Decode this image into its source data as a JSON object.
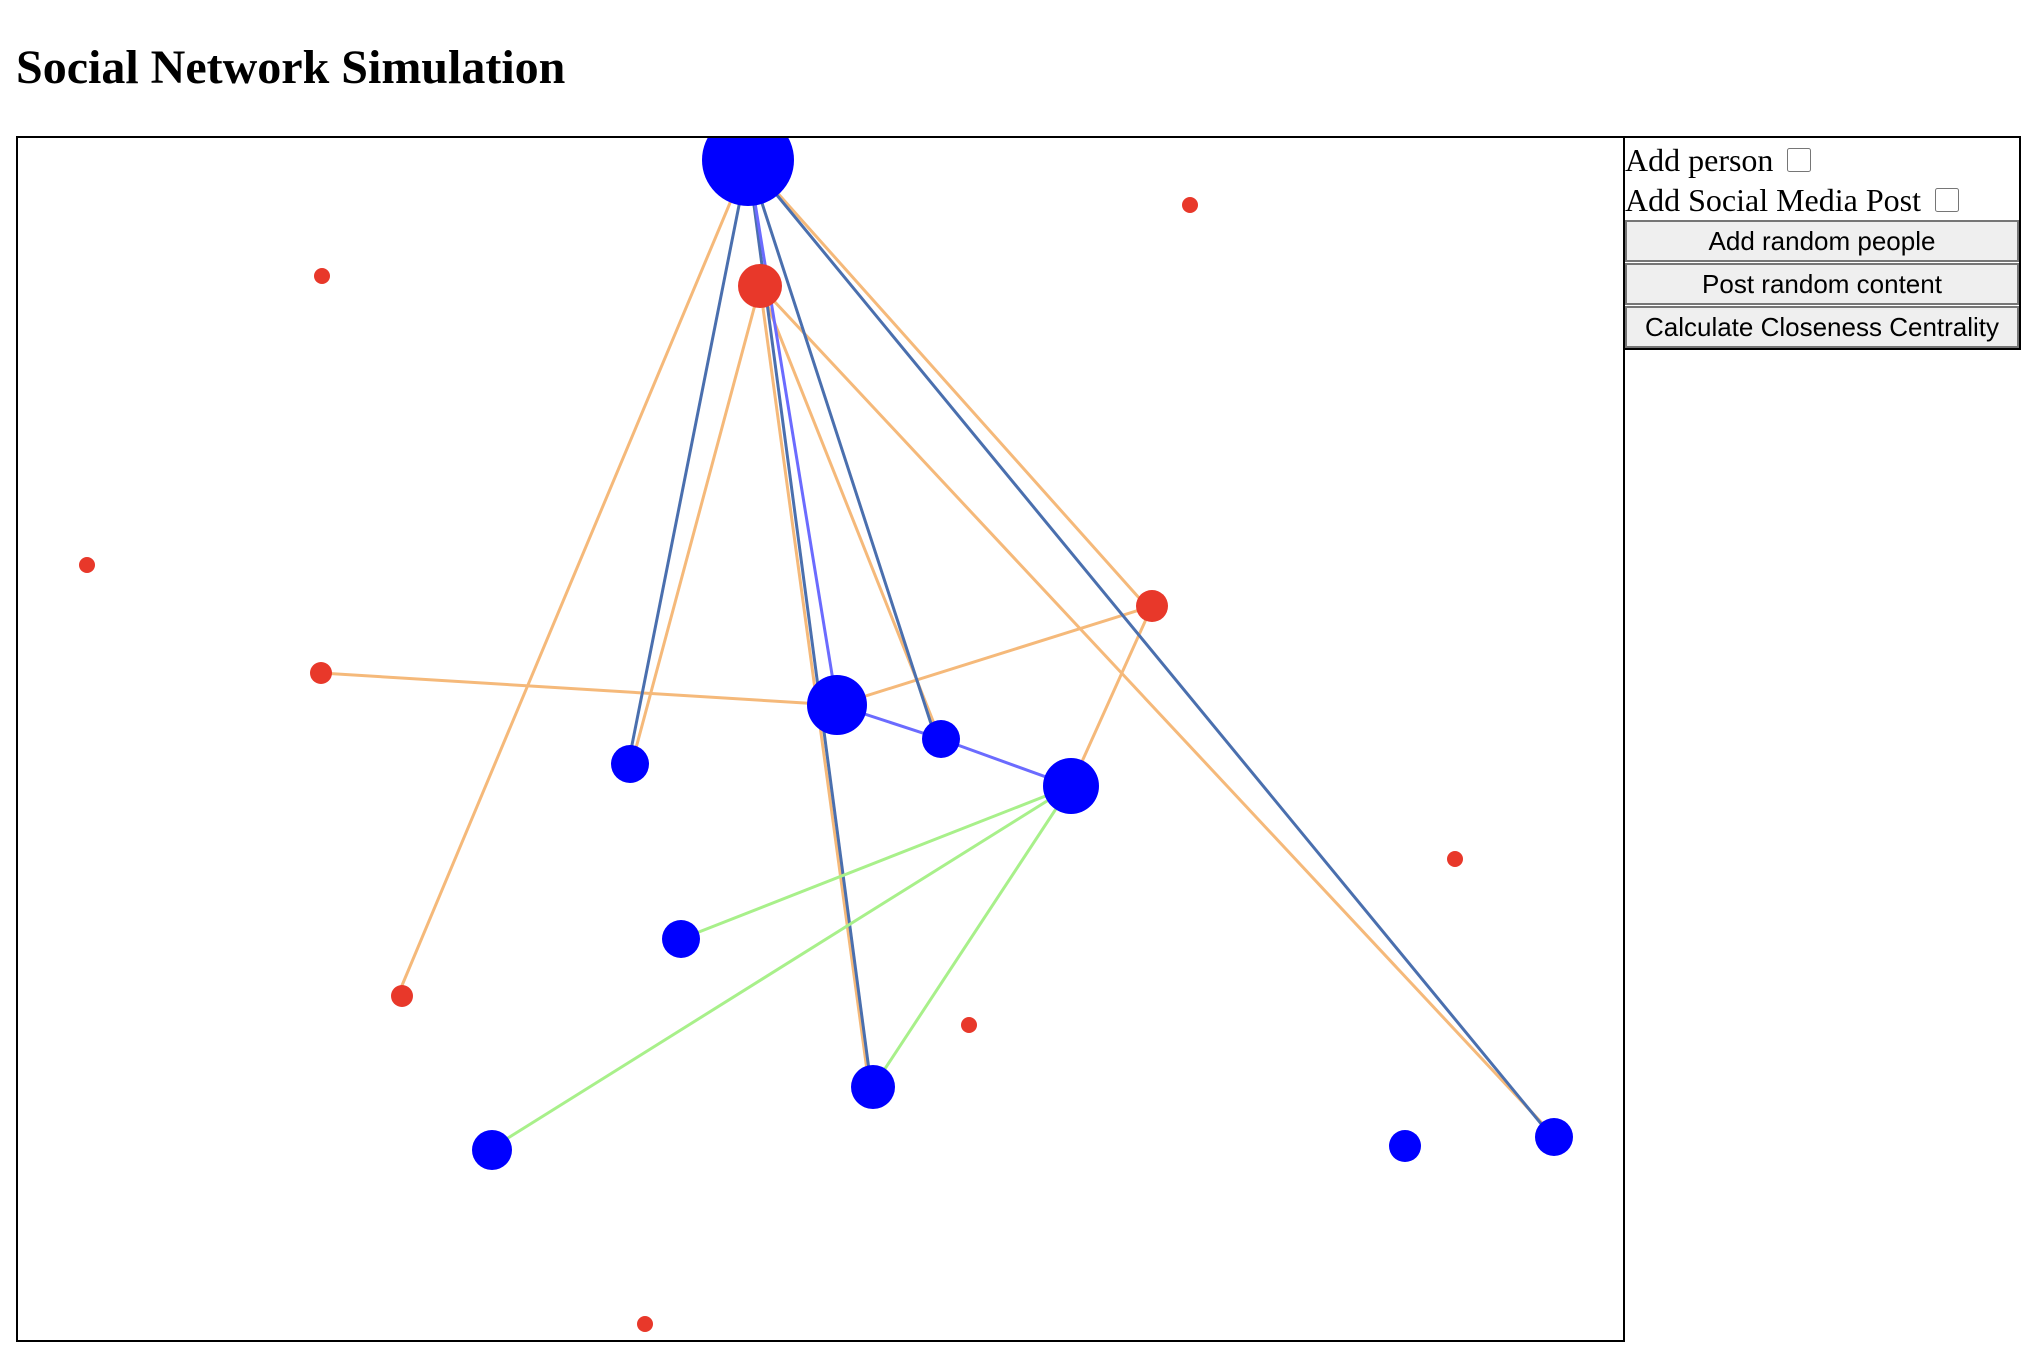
{
  "title": "Social Network Simulation",
  "controls": {
    "add_person_label": "Add person",
    "add_post_label": "Add Social Media Post",
    "add_random_people_label": "Add random people",
    "post_random_content_label": "Post random content",
    "closeness_centrality_label": "Calculate Closeness Centrality"
  },
  "colors": {
    "person": "#0000ff",
    "post": "#e8382a",
    "person_post_edge": "#f5b97a",
    "friend_edge": "#6b6bff",
    "overlap_edge": "#4a6fae",
    "recommend_edge": "#a8f08a"
  }
}
